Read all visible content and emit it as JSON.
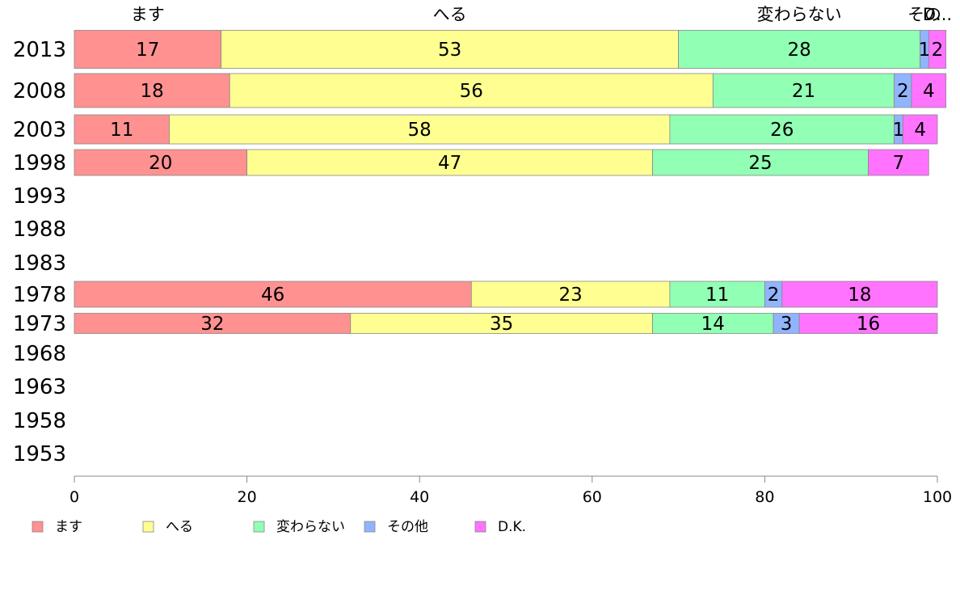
{
  "chart_data": {
    "type": "bar",
    "orientation": "horizontal",
    "stacked": true,
    "categories": [
      "2013",
      "2008",
      "2003",
      "1998",
      "1993",
      "1988",
      "1983",
      "1978",
      "1973",
      "1968",
      "1963",
      "1958",
      "1953"
    ],
    "series": [
      {
        "name": "ます",
        "color": "#ff9191",
        "values": [
          17,
          18,
          11,
          20,
          null,
          null,
          null,
          46,
          32,
          null,
          null,
          null,
          null
        ]
      },
      {
        "name": "へる",
        "color": "#ffff91",
        "values": [
          53,
          56,
          58,
          47,
          null,
          null,
          null,
          23,
          35,
          null,
          null,
          null,
          null
        ]
      },
      {
        "name": "変わらない",
        "color": "#91ffb4",
        "values": [
          28,
          21,
          26,
          25,
          null,
          null,
          null,
          11,
          14,
          null,
          null,
          null,
          null
        ]
      },
      {
        "name": "その他",
        "color": "#91b4ff",
        "values": [
          1,
          2,
          1,
          0,
          null,
          null,
          null,
          2,
          3,
          null,
          null,
          null,
          null
        ]
      },
      {
        "name": "D.K.",
        "color": "#ff73ff",
        "values": [
          2,
          4,
          4,
          7,
          null,
          null,
          null,
          18,
          16,
          null,
          null,
          null,
          null
        ]
      }
    ],
    "top_labels": [
      "ます",
      "へる",
      "変わらない",
      "その",
      "D..."
    ],
    "xlim": [
      0,
      100
    ],
    "xticks": [
      0,
      20,
      40,
      60,
      80,
      100
    ],
    "xlabel": "",
    "ylabel": "",
    "title": "",
    "legend": [
      "ます",
      "へる",
      "変わらない",
      "その他",
      "D.K."
    ],
    "legend_position": "bottom-left",
    "grid": false
  }
}
